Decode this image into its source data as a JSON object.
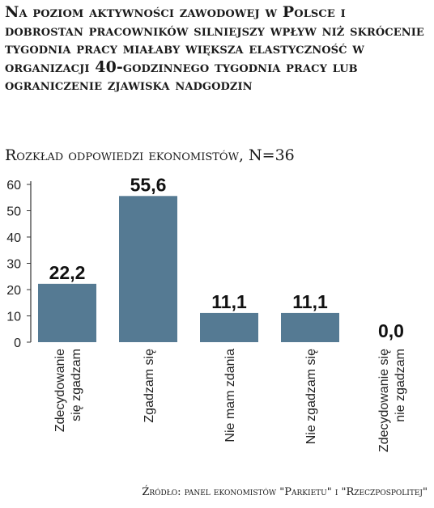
{
  "chart_data": {
    "type": "bar",
    "title": "Na poziom aktywności zawodowej w Polsce i dobrostan pracowników silniejszy wpływ niż skrócenie tygodnia pracy miałaby większa elastyczność w organizacji 40-godzinnego tygodnia pracy lub ograniczenie zjawiska nadgodzin",
    "subtitle": "Rozkład odpowiedzi ekonomistów, N=36",
    "categories": [
      [
        "Zdecydowanie",
        "się zgadzam"
      ],
      [
        "Zgadzam się"
      ],
      [
        "Nie mam zdania"
      ],
      [
        "Nie zgadzam się"
      ],
      [
        "Zdecydowanie się",
        "nie zgadzam"
      ]
    ],
    "values": [
      22.2,
      55.6,
      11.1,
      11.1,
      0.0
    ],
    "value_labels": [
      "22,2",
      "55,6",
      "11,1",
      "11,1",
      "0,0"
    ],
    "ylim": [
      0,
      60
    ],
    "yticks": [
      0,
      10,
      20,
      30,
      40,
      50,
      60
    ],
    "grid": false,
    "bar_color": "#557a93",
    "source": "Źródło: panel ekonomistów \"Parkietu\" i \"Rzeczpospolitej\""
  }
}
